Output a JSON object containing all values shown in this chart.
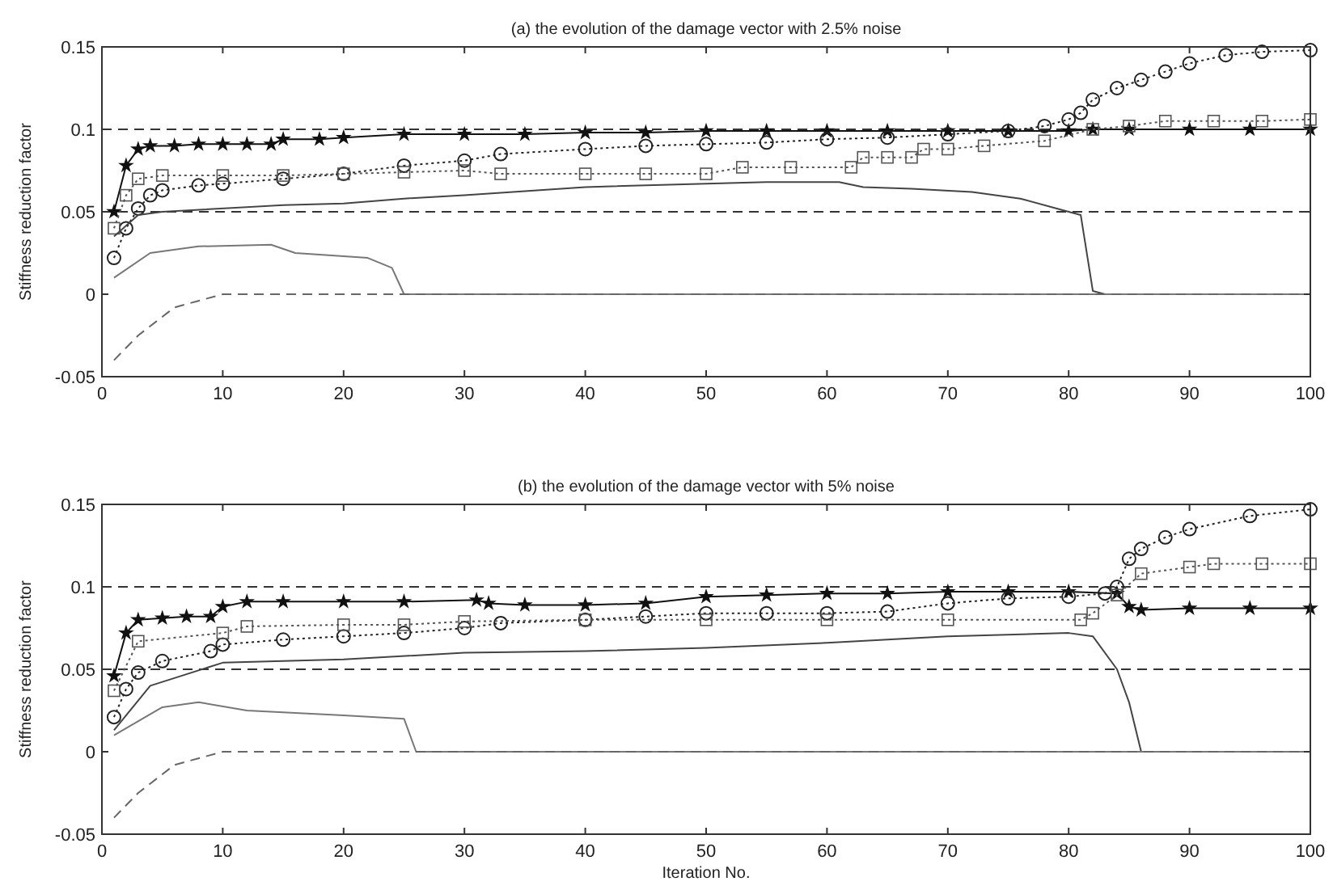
{
  "chart_data": [
    {
      "type": "line",
      "title": "(a) the evolution of the damage vector with 2.5% noise",
      "ylabel": "Stiffness reduction factor",
      "xlim": [
        0,
        100
      ],
      "ylim": [
        -0.05,
        0.15
      ],
      "xticks": [
        0,
        10,
        20,
        30,
        40,
        50,
        60,
        70,
        80,
        90,
        100
      ],
      "yticks": [
        -0.05,
        0,
        0.05,
        0.1,
        0.15
      ],
      "grid": false,
      "ref_lines": [
        {
          "axis": "y",
          "value": 0.1,
          "line_style": "dashed",
          "color": "#333333"
        },
        {
          "axis": "y",
          "value": 0.05,
          "line_style": "dashed",
          "color": "#333333"
        }
      ],
      "series": [
        {
          "color": "#111111",
          "marker": "star",
          "line_style": "solid",
          "x": [
            1,
            2,
            3,
            4,
            6,
            8,
            10,
            12,
            14,
            15,
            18,
            20,
            25,
            30,
            35,
            40,
            45,
            50,
            55,
            60,
            65,
            70,
            75,
            80,
            82,
            85,
            90,
            95,
            100
          ],
          "values": [
            0.05,
            0.078,
            0.088,
            0.09,
            0.09,
            0.091,
            0.091,
            0.091,
            0.091,
            0.094,
            0.094,
            0.095,
            0.097,
            0.097,
            0.097,
            0.098,
            0.098,
            0.099,
            0.099,
            0.099,
            0.099,
            0.099,
            0.099,
            0.099,
            0.1,
            0.1,
            0.1,
            0.1,
            0.1
          ]
        },
        {
          "color": "#222222",
          "marker": "circle",
          "line_style": "dotted",
          "x": [
            1,
            2,
            3,
            4,
            5,
            8,
            10,
            15,
            20,
            25,
            30,
            33,
            40,
            45,
            50,
            55,
            60,
            65,
            70,
            75,
            78,
            80,
            81,
            82,
            84,
            86,
            88,
            90,
            93,
            96,
            100
          ],
          "values": [
            0.022,
            0.04,
            0.052,
            0.06,
            0.063,
            0.066,
            0.067,
            0.07,
            0.073,
            0.078,
            0.081,
            0.085,
            0.088,
            0.09,
            0.091,
            0.092,
            0.094,
            0.095,
            0.097,
            0.099,
            0.102,
            0.106,
            0.11,
            0.118,
            0.125,
            0.13,
            0.135,
            0.14,
            0.145,
            0.147,
            0.148
          ]
        },
        {
          "color": "#555555",
          "marker": "square",
          "line_style": "dotted",
          "x": [
            1,
            2,
            3,
            5,
            10,
            15,
            20,
            25,
            30,
            33,
            40,
            45,
            50,
            53,
            57,
            62,
            63,
            65,
            67,
            68,
            70,
            73,
            78,
            82,
            85,
            88,
            92,
            96,
            100
          ],
          "values": [
            0.04,
            0.06,
            0.07,
            0.072,
            0.072,
            0.072,
            0.073,
            0.074,
            0.075,
            0.073,
            0.073,
            0.073,
            0.073,
            0.077,
            0.077,
            0.077,
            0.083,
            0.083,
            0.083,
            0.088,
            0.088,
            0.09,
            0.093,
            0.1,
            0.102,
            0.105,
            0.105,
            0.105,
            0.106
          ]
        },
        {
          "color": "#444444",
          "marker": "none",
          "line_style": "solid",
          "x": [
            1,
            3,
            5,
            15,
            20,
            25,
            30,
            40,
            55,
            61,
            63,
            67,
            72,
            76,
            80,
            81,
            82,
            83,
            100
          ],
          "values": [
            0.035,
            0.048,
            0.05,
            0.054,
            0.055,
            0.058,
            0.06,
            0.065,
            0.068,
            0.068,
            0.065,
            0.064,
            0.062,
            0.058,
            0.05,
            0.048,
            0.002,
            0,
            0
          ]
        },
        {
          "color": "#777777",
          "marker": "none",
          "line_style": "solid",
          "x": [
            1,
            4,
            8,
            14,
            16,
            22,
            24,
            25,
            100
          ],
          "values": [
            0.01,
            0.025,
            0.029,
            0.03,
            0.025,
            0.022,
            0.016,
            0,
            0
          ]
        },
        {
          "color": "#666666",
          "marker": "none",
          "line_style": "dashed",
          "x": [
            1,
            3,
            6,
            10,
            100
          ],
          "values": [
            -0.04,
            -0.025,
            -0.008,
            0,
            0
          ]
        }
      ]
    },
    {
      "type": "line",
      "title": "(b) the evolution of the damage vector with 5% noise",
      "xlabel": "Iteration No.",
      "ylabel": "Stiffness reduction factor",
      "xlim": [
        0,
        100
      ],
      "ylim": [
        -0.05,
        0.15
      ],
      "xticks": [
        0,
        10,
        20,
        30,
        40,
        50,
        60,
        70,
        80,
        90,
        100
      ],
      "yticks": [
        -0.05,
        0,
        0.05,
        0.1,
        0.15
      ],
      "grid": false,
      "ref_lines": [
        {
          "axis": "y",
          "value": 0.1,
          "line_style": "dashed",
          "color": "#333333"
        },
        {
          "axis": "y",
          "value": 0.05,
          "line_style": "dashed",
          "color": "#333333"
        }
      ],
      "series": [
        {
          "color": "#111111",
          "marker": "star",
          "line_style": "solid",
          "x": [
            1,
            2,
            3,
            5,
            7,
            9,
            10,
            12,
            15,
            20,
            25,
            31,
            32,
            35,
            40,
            45,
            50,
            55,
            60,
            65,
            70,
            75,
            80,
            84,
            85,
            86,
            90,
            95,
            100
          ],
          "values": [
            0.046,
            0.072,
            0.08,
            0.081,
            0.082,
            0.082,
            0.088,
            0.091,
            0.091,
            0.091,
            0.091,
            0.092,
            0.09,
            0.089,
            0.089,
            0.09,
            0.094,
            0.095,
            0.096,
            0.096,
            0.097,
            0.097,
            0.097,
            0.096,
            0.088,
            0.086,
            0.087,
            0.087,
            0.087
          ]
        },
        {
          "color": "#222222",
          "marker": "circle",
          "line_style": "dotted",
          "x": [
            1,
            2,
            3,
            5,
            9,
            10,
            15,
            20,
            25,
            30,
            33,
            40,
            45,
            50,
            55,
            60,
            65,
            70,
            75,
            80,
            83,
            84,
            85,
            86,
            88,
            90,
            95,
            100
          ],
          "values": [
            0.021,
            0.038,
            0.048,
            0.055,
            0.061,
            0.065,
            0.068,
            0.07,
            0.072,
            0.075,
            0.078,
            0.08,
            0.082,
            0.084,
            0.084,
            0.084,
            0.085,
            0.09,
            0.093,
            0.094,
            0.096,
            0.1,
            0.117,
            0.123,
            0.13,
            0.135,
            0.143,
            0.147
          ]
        },
        {
          "color": "#555555",
          "marker": "square",
          "line_style": "dotted",
          "x": [
            1,
            3,
            10,
            12,
            20,
            25,
            30,
            40,
            50,
            60,
            70,
            81,
            82,
            84,
            86,
            90,
            92,
            96,
            100
          ],
          "values": [
            0.037,
            0.067,
            0.072,
            0.076,
            0.077,
            0.077,
            0.079,
            0.08,
            0.08,
            0.08,
            0.08,
            0.08,
            0.084,
            0.095,
            0.108,
            0.112,
            0.114,
            0.114,
            0.114
          ]
        },
        {
          "color": "#444444",
          "marker": "none",
          "line_style": "solid",
          "x": [
            1,
            4,
            10,
            20,
            30,
            40,
            50,
            60,
            70,
            80,
            82,
            84,
            85,
            86,
            100
          ],
          "values": [
            0.013,
            0.04,
            0.054,
            0.056,
            0.06,
            0.061,
            0.063,
            0.066,
            0.07,
            0.072,
            0.07,
            0.05,
            0.03,
            0,
            0
          ]
        },
        {
          "color": "#777777",
          "marker": "none",
          "line_style": "solid",
          "x": [
            1,
            5,
            8,
            12,
            20,
            25,
            26,
            100
          ],
          "values": [
            0.01,
            0.027,
            0.03,
            0.025,
            0.022,
            0.02,
            0,
            0
          ]
        },
        {
          "color": "#666666",
          "marker": "none",
          "line_style": "dashed",
          "x": [
            1,
            3,
            6,
            10,
            100
          ],
          "values": [
            -0.04,
            -0.025,
            -0.008,
            0,
            0
          ]
        }
      ]
    }
  ]
}
